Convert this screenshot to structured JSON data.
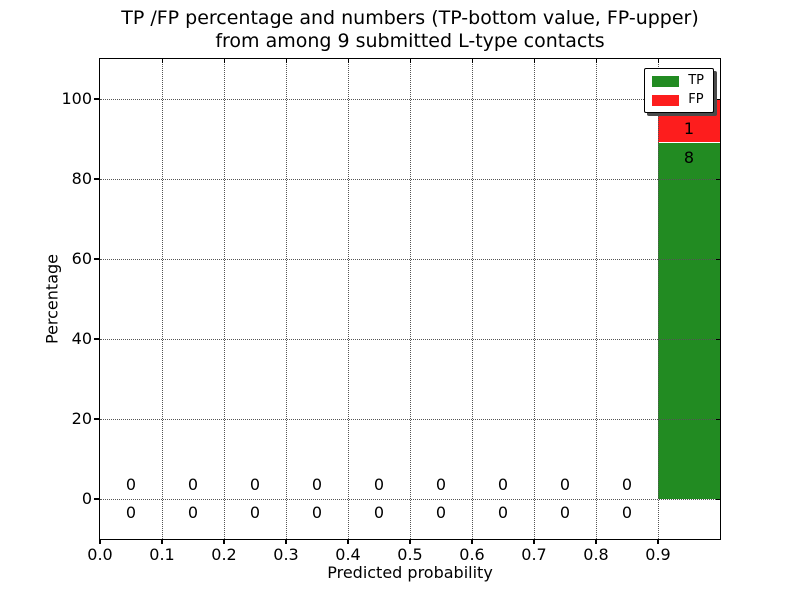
{
  "chart_data": {
    "type": "bar",
    "stacked": true,
    "title_line1": "TP /FP percentage and numbers (TP-bottom value, FP-upper)",
    "title_line2": "from among 9 submitted L-type contacts",
    "xlabel": "Predicted probability",
    "ylabel": "Percentage",
    "xlim": [
      0.0,
      1.0
    ],
    "ylim": [
      -10,
      110
    ],
    "x_ticks": [
      "0.0",
      "0.1",
      "0.2",
      "0.3",
      "0.4",
      "0.5",
      "0.6",
      "0.7",
      "0.8",
      "0.9"
    ],
    "y_ticks": [
      "0",
      "20",
      "40",
      "60",
      "80",
      "100"
    ],
    "grid": "dotted both axes",
    "total_contacts": 9,
    "bin_width": 0.1,
    "bins": [
      {
        "x_start": 0.0,
        "tp": 0,
        "fp": 0
      },
      {
        "x_start": 0.1,
        "tp": 0,
        "fp": 0
      },
      {
        "x_start": 0.2,
        "tp": 0,
        "fp": 0
      },
      {
        "x_start": 0.3,
        "tp": 0,
        "fp": 0
      },
      {
        "x_start": 0.4,
        "tp": 0,
        "fp": 0
      },
      {
        "x_start": 0.5,
        "tp": 0,
        "fp": 0
      },
      {
        "x_start": 0.6,
        "tp": 0,
        "fp": 0
      },
      {
        "x_start": 0.7,
        "tp": 0,
        "fp": 0
      },
      {
        "x_start": 0.8,
        "tp": 0,
        "fp": 0
      },
      {
        "x_start": 0.9,
        "tp": 8,
        "fp": 1
      }
    ],
    "colors": {
      "tp": "#228b22",
      "fp": "#fd1d1d"
    },
    "legend": {
      "position": "upper right",
      "entries": [
        {
          "label": "TP",
          "color": "#228b22"
        },
        {
          "label": "FP",
          "color": "#fd1d1d"
        }
      ]
    }
  }
}
